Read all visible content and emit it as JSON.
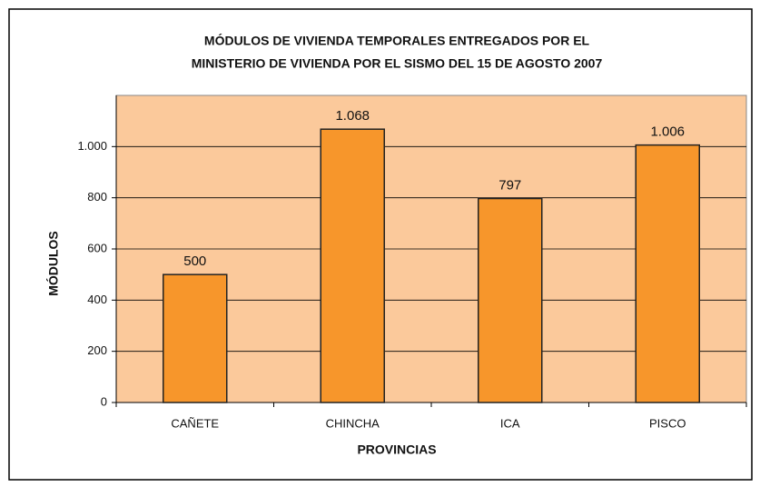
{
  "chart_data": {
    "type": "bar",
    "title": [
      "MÓDULOS DE VIVIENDA TEMPORALES  ENTREGADOS POR EL",
      "MINISTERIO DE VIVIENDA POR EL SISMO DEL 15 DE AGOSTO 2007"
    ],
    "x_label": "PROVINCIAS",
    "y_label": "MÓDULOS",
    "categories": [
      "CAÑETE",
      "CHINCHA",
      "ICA",
      "PISCO"
    ],
    "values": [
      500,
      1068,
      797,
      1006
    ],
    "value_labels": [
      "500",
      "1.068",
      "797",
      "1.006"
    ],
    "color": "#f7962b",
    "plot_background": "#fbc99b",
    "ylim": [
      0,
      1200
    ],
    "yticks": [
      0,
      200,
      400,
      600,
      800,
      {
        "value": 1000,
        "label": "1.000"
      }
    ],
    "grid": true
  }
}
